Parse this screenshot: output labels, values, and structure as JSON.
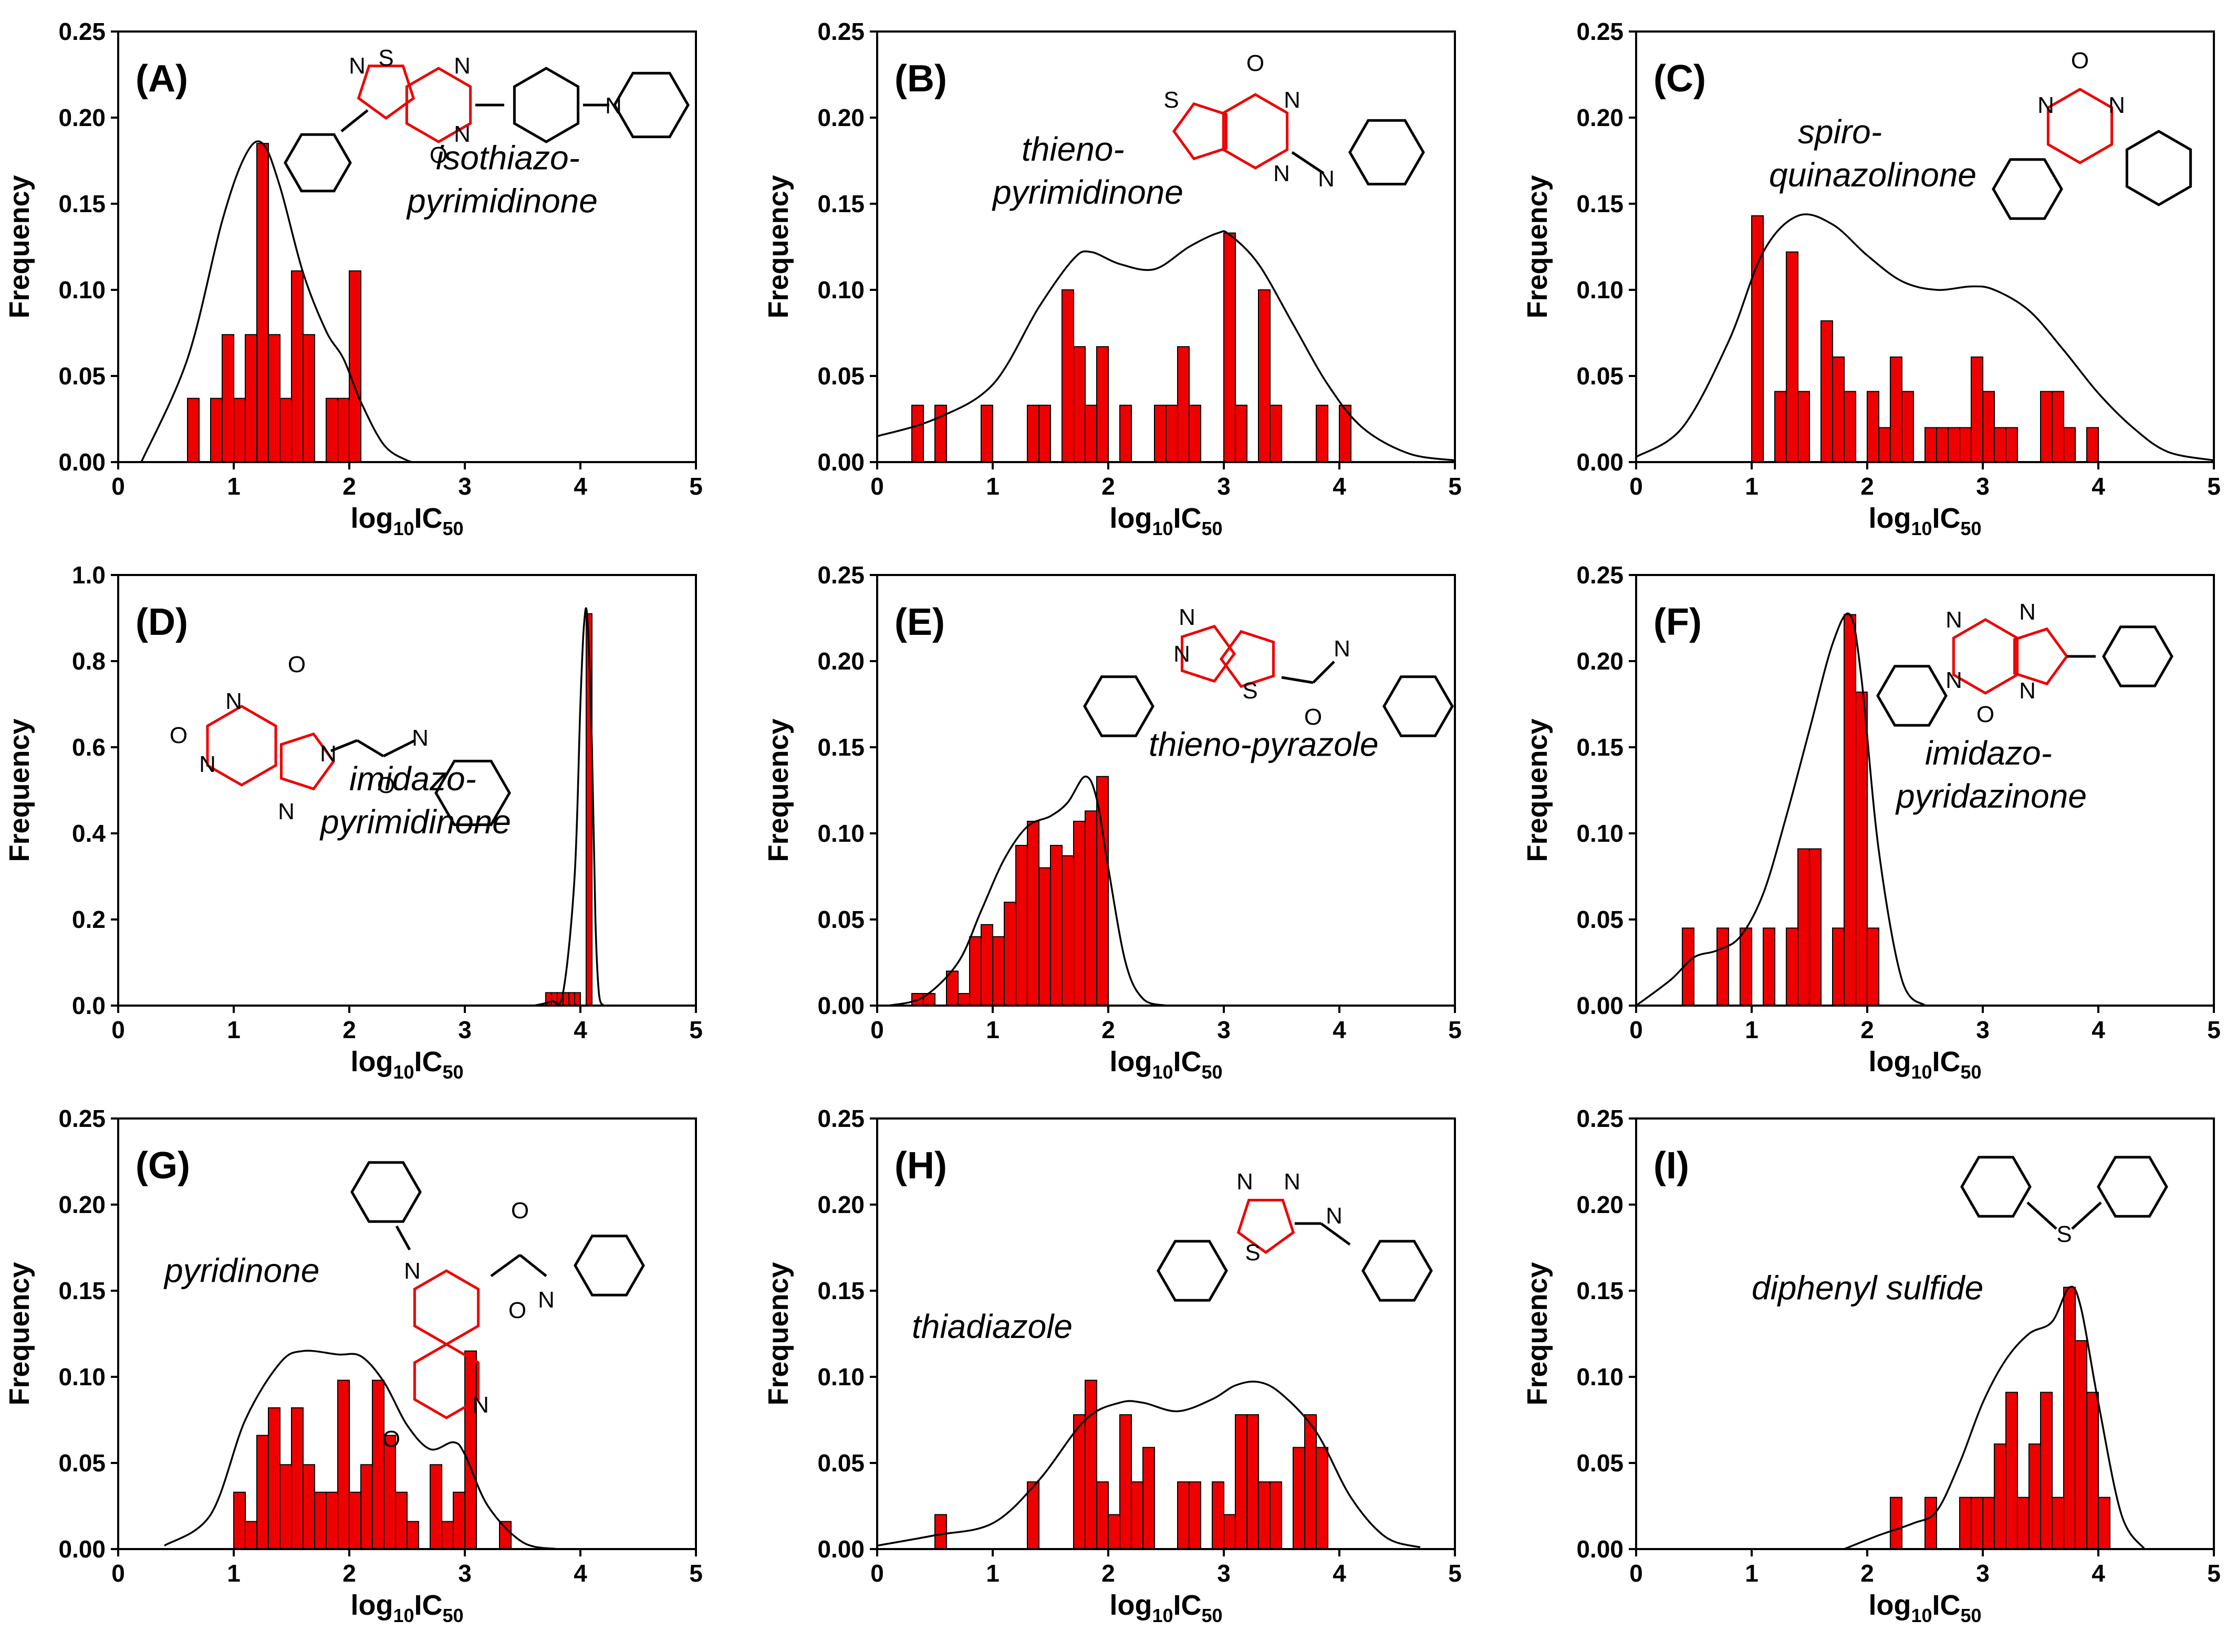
{
  "chart_data": [
    {
      "id": "A",
      "panel_label": "(A)",
      "name": [
        "isothiazo-",
        "pyrimidinone"
      ],
      "type": "bar",
      "xlabel_main": "log",
      "xlabel_sub1": "10",
      "xlabel_mid": "IC",
      "xlabel_sub2": "50",
      "ylabel": "Frequency",
      "xlim": [
        0,
        5
      ],
      "ylim": [
        0,
        0.25
      ],
      "xticks": [
        "0",
        "1",
        "2",
        "3",
        "4",
        "5"
      ],
      "yticks": [
        "0.00",
        "0.05",
        "0.10",
        "0.15",
        "0.20",
        "0.25"
      ],
      "bin_width": 0.1,
      "bars": [
        [
          0.65,
          0.037
        ],
        [
          0.85,
          0.037
        ],
        [
          0.95,
          0.074
        ],
        [
          1.05,
          0.037
        ],
        [
          1.15,
          0.074
        ],
        [
          1.25,
          0.185
        ],
        [
          1.35,
          0.074
        ],
        [
          1.45,
          0.037
        ],
        [
          1.55,
          0.111
        ],
        [
          1.65,
          0.074
        ],
        [
          1.85,
          0.037
        ],
        [
          1.95,
          0.037
        ],
        [
          2.05,
          0.111
        ]
      ],
      "density_x": [
        0.2,
        0.6,
        0.9,
        1.1,
        1.25,
        1.4,
        1.6,
        1.8,
        1.95,
        2.1,
        2.3,
        2.5,
        2.6
      ],
      "density_y": [
        0.0,
        0.06,
        0.14,
        0.178,
        0.185,
        0.16,
        0.11,
        0.076,
        0.06,
        0.035,
        0.01,
        0.001,
        0.0
      ]
    },
    {
      "id": "B",
      "panel_label": "(B)",
      "name": [
        "thieno-",
        "pyrimidinone"
      ],
      "type": "bar",
      "xlabel_main": "log",
      "xlabel_sub1": "10",
      "xlabel_mid": "IC",
      "xlabel_sub2": "50",
      "ylabel": "Frequency",
      "xlim": [
        0,
        5
      ],
      "ylim": [
        0,
        0.25
      ],
      "xticks": [
        "0",
        "1",
        "2",
        "3",
        "4",
        "5"
      ],
      "yticks": [
        "0.00",
        "0.05",
        "0.10",
        "0.15",
        "0.20",
        "0.25"
      ],
      "bin_width": 0.1,
      "bars": [
        [
          0.35,
          0.033
        ],
        [
          0.55,
          0.033
        ],
        [
          0.95,
          0.033
        ],
        [
          1.35,
          0.033
        ],
        [
          1.45,
          0.033
        ],
        [
          1.65,
          0.1
        ],
        [
          1.75,
          0.067
        ],
        [
          1.85,
          0.033
        ],
        [
          1.95,
          0.067
        ],
        [
          2.15,
          0.033
        ],
        [
          2.45,
          0.033
        ],
        [
          2.55,
          0.033
        ],
        [
          2.65,
          0.067
        ],
        [
          2.75,
          0.033
        ],
        [
          3.05,
          0.133
        ],
        [
          3.15,
          0.033
        ],
        [
          3.35,
          0.1
        ],
        [
          3.45,
          0.033
        ],
        [
          3.85,
          0.033
        ],
        [
          4.05,
          0.033
        ]
      ],
      "density_x": [
        0,
        0.5,
        1,
        1.4,
        1.7,
        1.85,
        2.1,
        2.4,
        2.7,
        2.95,
        3.05,
        3.3,
        3.6,
        3.9,
        4.2,
        4.6,
        5
      ],
      "density_y": [
        0.015,
        0.025,
        0.045,
        0.09,
        0.118,
        0.122,
        0.115,
        0.112,
        0.125,
        0.133,
        0.132,
        0.115,
        0.08,
        0.045,
        0.02,
        0.005,
        0.001
      ]
    },
    {
      "id": "C",
      "panel_label": "(C)",
      "name": [
        "spiro-",
        "quinazolinone"
      ],
      "type": "bar",
      "xlabel_main": "log",
      "xlabel_sub1": "10",
      "xlabel_mid": "IC",
      "xlabel_sub2": "50",
      "ylabel": "Frequency",
      "xlim": [
        0,
        5
      ],
      "ylim": [
        0,
        0.25
      ],
      "xticks": [
        "0",
        "1",
        "2",
        "3",
        "4",
        "5"
      ],
      "yticks": [
        "0.00",
        "0.05",
        "0.10",
        "0.15",
        "0.20",
        "0.25"
      ],
      "bin_width": 0.1,
      "bars": [
        [
          1.05,
          0.143
        ],
        [
          1.25,
          0.041
        ],
        [
          1.35,
          0.122
        ],
        [
          1.45,
          0.041
        ],
        [
          1.65,
          0.082
        ],
        [
          1.75,
          0.061
        ],
        [
          1.85,
          0.041
        ],
        [
          2.05,
          0.041
        ],
        [
          2.15,
          0.02
        ],
        [
          2.25,
          0.061
        ],
        [
          2.35,
          0.041
        ],
        [
          2.55,
          0.02
        ],
        [
          2.65,
          0.02
        ],
        [
          2.75,
          0.02
        ],
        [
          2.85,
          0.02
        ],
        [
          2.95,
          0.061
        ],
        [
          3.05,
          0.041
        ],
        [
          3.15,
          0.02
        ],
        [
          3.25,
          0.02
        ],
        [
          3.55,
          0.041
        ],
        [
          3.65,
          0.041
        ],
        [
          3.75,
          0.02
        ],
        [
          3.95,
          0.02
        ]
      ],
      "density_x": [
        0,
        0.4,
        0.8,
        1.1,
        1.4,
        1.7,
        2.0,
        2.3,
        2.6,
        2.9,
        3.1,
        3.4,
        3.7,
        4.0,
        4.3,
        4.6,
        5
      ],
      "density_y": [
        0.003,
        0.02,
        0.07,
        0.122,
        0.143,
        0.138,
        0.12,
        0.105,
        0.1,
        0.102,
        0.1,
        0.088,
        0.065,
        0.04,
        0.02,
        0.006,
        0.001
      ]
    },
    {
      "id": "D",
      "panel_label": "(D)",
      "name": [
        "imidazo-",
        "pyrimidinone"
      ],
      "type": "bar",
      "xlabel_main": "log",
      "xlabel_sub1": "10",
      "xlabel_mid": "IC",
      "xlabel_sub2": "50",
      "ylabel": "Frequency",
      "xlim": [
        0,
        5
      ],
      "ylim": [
        0,
        1.0
      ],
      "xticks": [
        "0",
        "1",
        "2",
        "3",
        "4",
        "5"
      ],
      "yticks": [
        "0.0",
        "0.2",
        "0.4",
        "0.6",
        "0.8",
        "1.0"
      ],
      "bin_width": 0.05,
      "bars": [
        [
          3.725,
          0.03
        ],
        [
          3.775,
          0.03
        ],
        [
          3.825,
          0.03
        ],
        [
          3.875,
          0.03
        ],
        [
          3.925,
          0.03
        ],
        [
          3.975,
          0.03
        ],
        [
          4.075,
          0.91
        ]
      ],
      "density_x": [
        3.6,
        3.75,
        3.85,
        3.95,
        4.0,
        4.03,
        4.06,
        4.1,
        4.13,
        4.16,
        4.2
      ],
      "density_y": [
        0.0,
        0.01,
        0.03,
        0.3,
        0.7,
        0.88,
        0.9,
        0.6,
        0.2,
        0.03,
        0.0
      ]
    },
    {
      "id": "E",
      "panel_label": "(E)",
      "name": [
        "thieno-pyrazole"
      ],
      "type": "bar",
      "xlabel_main": "log",
      "xlabel_sub1": "10",
      "xlabel_mid": "IC",
      "xlabel_sub2": "50",
      "ylabel": "Frequency",
      "xlim": [
        0,
        5
      ],
      "ylim": [
        0,
        0.25
      ],
      "xticks": [
        "0",
        "1",
        "2",
        "3",
        "4",
        "5"
      ],
      "yticks": [
        "0.00",
        "0.05",
        "0.10",
        "0.15",
        "0.20",
        "0.25"
      ],
      "bin_width": 0.1,
      "bars": [
        [
          0.35,
          0.007
        ],
        [
          0.45,
          0.007
        ],
        [
          0.65,
          0.02
        ],
        [
          0.75,
          0.007
        ],
        [
          0.85,
          0.04
        ],
        [
          0.95,
          0.047
        ],
        [
          1.05,
          0.04
        ],
        [
          1.15,
          0.06
        ],
        [
          1.25,
          0.093
        ],
        [
          1.35,
          0.107
        ],
        [
          1.45,
          0.08
        ],
        [
          1.55,
          0.093
        ],
        [
          1.65,
          0.087
        ],
        [
          1.75,
          0.107
        ],
        [
          1.85,
          0.113
        ],
        [
          1.95,
          0.133
        ]
      ],
      "density_x": [
        0.1,
        0.4,
        0.7,
        0.9,
        1.1,
        1.3,
        1.5,
        1.65,
        1.8,
        1.9,
        2.0,
        2.15,
        2.3,
        2.5
      ],
      "density_y": [
        0.0,
        0.005,
        0.025,
        0.055,
        0.085,
        0.104,
        0.11,
        0.118,
        0.133,
        0.12,
        0.08,
        0.025,
        0.004,
        0.0
      ]
    },
    {
      "id": "F",
      "panel_label": "(F)",
      "name": [
        "imidazo-",
        "pyridazinone"
      ],
      "type": "bar",
      "xlabel_main": "log",
      "xlabel_sub1": "10",
      "xlabel_mid": "IC",
      "xlabel_sub2": "50",
      "ylabel": "Frequency",
      "xlim": [
        0,
        5
      ],
      "ylim": [
        0,
        0.25
      ],
      "xticks": [
        "0",
        "1",
        "2",
        "3",
        "4",
        "5"
      ],
      "yticks": [
        "0.00",
        "0.05",
        "0.10",
        "0.15",
        "0.20",
        "0.25"
      ],
      "bin_width": 0.1,
      "bars": [
        [
          0.45,
          0.045
        ],
        [
          0.75,
          0.045
        ],
        [
          0.95,
          0.045
        ],
        [
          1.15,
          0.045
        ],
        [
          1.35,
          0.045
        ],
        [
          1.45,
          0.091
        ],
        [
          1.55,
          0.091
        ],
        [
          1.75,
          0.045
        ],
        [
          1.85,
          0.227
        ],
        [
          1.95,
          0.182
        ],
        [
          2.05,
          0.045
        ]
      ],
      "density_x": [
        0,
        0.3,
        0.5,
        0.7,
        0.9,
        1.1,
        1.3,
        1.5,
        1.7,
        1.85,
        1.95,
        2.1,
        2.3,
        2.5
      ],
      "density_y": [
        0.0,
        0.015,
        0.028,
        0.032,
        0.04,
        0.065,
        0.11,
        0.16,
        0.21,
        0.227,
        0.19,
        0.09,
        0.015,
        0.0
      ]
    },
    {
      "id": "G",
      "panel_label": "(G)",
      "name": [
        "pyridinone"
      ],
      "type": "bar",
      "xlabel_main": "log",
      "xlabel_sub1": "10",
      "xlabel_mid": "IC",
      "xlabel_sub2": "50",
      "ylabel": "Frequency",
      "xlim": [
        0,
        5
      ],
      "ylim": [
        0,
        0.25
      ],
      "xticks": [
        "0",
        "1",
        "2",
        "3",
        "4",
        "5"
      ],
      "yticks": [
        "0.00",
        "0.05",
        "0.10",
        "0.15",
        "0.20",
        "0.25"
      ],
      "bin_width": 0.1,
      "bars": [
        [
          1.05,
          0.033
        ],
        [
          1.15,
          0.016
        ],
        [
          1.25,
          0.066
        ],
        [
          1.35,
          0.082
        ],
        [
          1.45,
          0.049
        ],
        [
          1.55,
          0.082
        ],
        [
          1.65,
          0.049
        ],
        [
          1.75,
          0.033
        ],
        [
          1.85,
          0.033
        ],
        [
          1.95,
          0.098
        ],
        [
          2.05,
          0.033
        ],
        [
          2.15,
          0.049
        ],
        [
          2.25,
          0.098
        ],
        [
          2.35,
          0.066
        ],
        [
          2.45,
          0.033
        ],
        [
          2.55,
          0.016
        ],
        [
          2.75,
          0.049
        ],
        [
          2.85,
          0.016
        ],
        [
          2.95,
          0.033
        ],
        [
          3.05,
          0.115
        ],
        [
          3.35,
          0.016
        ]
      ],
      "density_x": [
        0.4,
        0.8,
        1.1,
        1.4,
        1.6,
        1.9,
        2.1,
        2.3,
        2.5,
        2.7,
        2.9,
        3.0,
        3.2,
        3.5,
        3.8
      ],
      "density_y": [
        0.002,
        0.02,
        0.075,
        0.108,
        0.115,
        0.113,
        0.112,
        0.097,
        0.072,
        0.058,
        0.062,
        0.055,
        0.025,
        0.004,
        0.0
      ]
    },
    {
      "id": "H",
      "panel_label": "(H)",
      "name": [
        "thiadiazole"
      ],
      "type": "bar",
      "xlabel_main": "log",
      "xlabel_sub1": "10",
      "xlabel_mid": "IC",
      "xlabel_sub2": "50",
      "ylabel": "Frequency",
      "xlim": [
        0,
        5
      ],
      "ylim": [
        0,
        0.25
      ],
      "xticks": [
        "0",
        "1",
        "2",
        "3",
        "4",
        "5"
      ],
      "yticks": [
        "0.00",
        "0.05",
        "0.10",
        "0.15",
        "0.20",
        "0.25"
      ],
      "bin_width": 0.1,
      "bars": [
        [
          0.55,
          0.02
        ],
        [
          1.35,
          0.039
        ],
        [
          1.75,
          0.078
        ],
        [
          1.85,
          0.098
        ],
        [
          1.95,
          0.039
        ],
        [
          2.05,
          0.02
        ],
        [
          2.15,
          0.078
        ],
        [
          2.25,
          0.039
        ],
        [
          2.35,
          0.059
        ],
        [
          2.65,
          0.039
        ],
        [
          2.75,
          0.039
        ],
        [
          2.95,
          0.039
        ],
        [
          3.05,
          0.02
        ],
        [
          3.15,
          0.078
        ],
        [
          3.25,
          0.078
        ],
        [
          3.35,
          0.039
        ],
        [
          3.45,
          0.039
        ],
        [
          3.65,
          0.059
        ],
        [
          3.75,
          0.078
        ],
        [
          3.85,
          0.059
        ]
      ],
      "density_x": [
        0,
        0.5,
        1.0,
        1.4,
        1.8,
        2.1,
        2.3,
        2.6,
        2.9,
        3.1,
        3.3,
        3.5,
        3.8,
        4.1,
        4.4,
        4.7
      ],
      "density_y": [
        0.002,
        0.008,
        0.015,
        0.04,
        0.075,
        0.085,
        0.085,
        0.08,
        0.087,
        0.095,
        0.097,
        0.09,
        0.068,
        0.03,
        0.007,
        0.001
      ]
    },
    {
      "id": "I",
      "panel_label": "(I)",
      "name": [
        "diphenyl  sulfide"
      ],
      "type": "bar",
      "xlabel_main": "log",
      "xlabel_sub1": "10",
      "xlabel_mid": "IC",
      "xlabel_sub2": "50",
      "ylabel": "Frequency",
      "xlim": [
        0,
        5
      ],
      "ylim": [
        0,
        0.25
      ],
      "xticks": [
        "0",
        "1",
        "2",
        "3",
        "4",
        "5"
      ],
      "yticks": [
        "0.00",
        "0.05",
        "0.10",
        "0.15",
        "0.20",
        "0.25"
      ],
      "bin_width": 0.1,
      "bars": [
        [
          2.25,
          0.03
        ],
        [
          2.55,
          0.03
        ],
        [
          2.85,
          0.03
        ],
        [
          2.95,
          0.03
        ],
        [
          3.05,
          0.03
        ],
        [
          3.15,
          0.061
        ],
        [
          3.25,
          0.091
        ],
        [
          3.35,
          0.03
        ],
        [
          3.45,
          0.061
        ],
        [
          3.55,
          0.091
        ],
        [
          3.65,
          0.03
        ],
        [
          3.75,
          0.152
        ],
        [
          3.85,
          0.121
        ],
        [
          3.95,
          0.091
        ],
        [
          4.05,
          0.03
        ]
      ],
      "density_x": [
        1.8,
        2.1,
        2.4,
        2.6,
        2.8,
        3.0,
        3.2,
        3.4,
        3.6,
        3.75,
        3.85,
        4.0,
        4.2,
        4.4
      ],
      "density_y": [
        0.0,
        0.008,
        0.015,
        0.022,
        0.05,
        0.085,
        0.11,
        0.125,
        0.132,
        0.152,
        0.14,
        0.085,
        0.02,
        0.0
      ]
    }
  ]
}
